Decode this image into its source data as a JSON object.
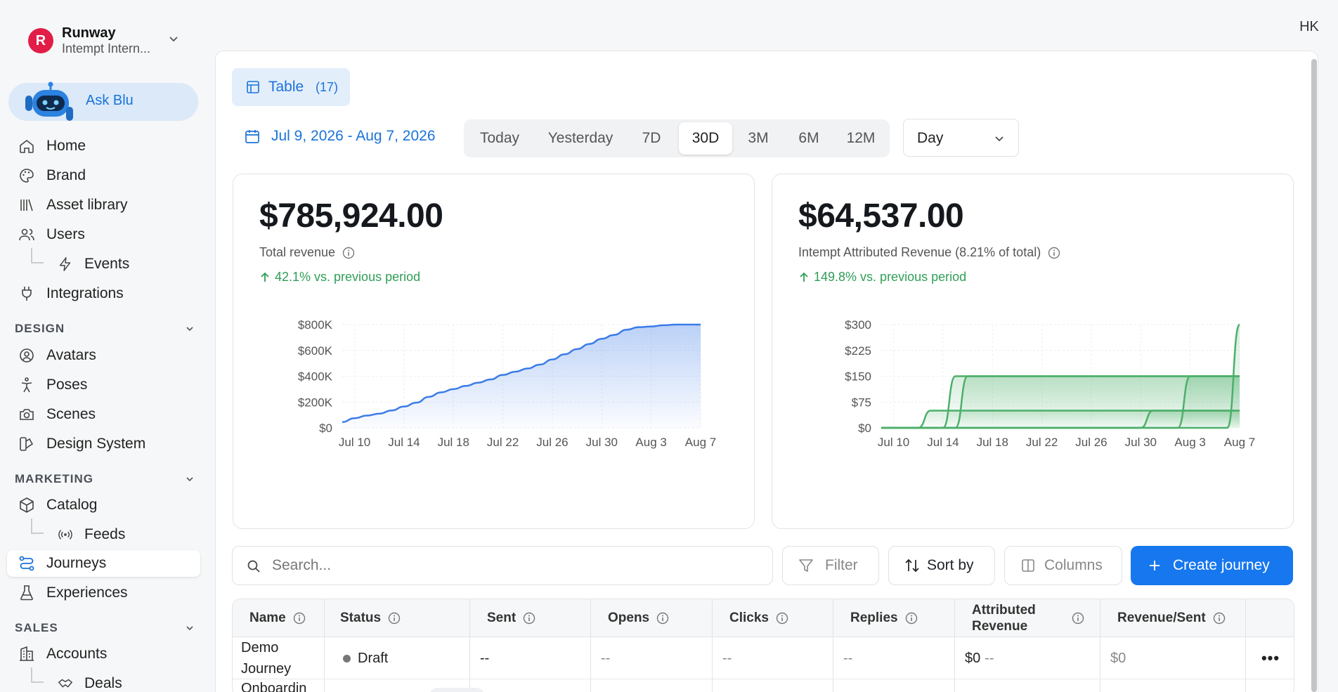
{
  "org": {
    "initial": "R",
    "name": "Runway",
    "subtitle": "Intempt Intern..."
  },
  "user_initials": "HK",
  "ask_blu": "Ask Blu",
  "nav": {
    "home": "Home",
    "brand": "Brand",
    "asset_library": "Asset library",
    "users": "Users",
    "events": "Events",
    "integrations": "Integrations",
    "design_section": "DESIGN",
    "avatars": "Avatars",
    "poses": "Poses",
    "scenes": "Scenes",
    "design_system": "Design System",
    "marketing_section": "MARKETING",
    "catalog": "Catalog",
    "feeds": "Feeds",
    "journeys": "Journeys",
    "experiences": "Experiences",
    "sales_section": "SALES",
    "accounts": "Accounts",
    "deals": "Deals"
  },
  "view_tab": {
    "label": "Table",
    "count": "(17)"
  },
  "date_range": "Jul 9, 2026 - Aug 7, 2026",
  "periods": [
    "Today",
    "Yesterday",
    "7D",
    "30D",
    "3M",
    "6M",
    "12M"
  ],
  "active_period": "30D",
  "granularity": "Day",
  "cards": {
    "total": {
      "value": "$785,924.00",
      "label": "Total revenue",
      "delta": "42.1% vs. previous period"
    },
    "attributed": {
      "value": "$64,537.00",
      "label": "Intempt Attributed Revenue (8.21% of total)",
      "delta": "149.8% vs. previous period"
    }
  },
  "chart_data": [
    {
      "type": "area",
      "title": "",
      "x": [
        "Jul 9",
        "Jul 10",
        "Jul 11",
        "Jul 12",
        "Jul 13",
        "Jul 14",
        "Jul 15",
        "Jul 16",
        "Jul 17",
        "Jul 18",
        "Jul 19",
        "Jul 20",
        "Jul 21",
        "Jul 22",
        "Jul 23",
        "Jul 24",
        "Jul 25",
        "Jul 26",
        "Jul 27",
        "Jul 28",
        "Jul 29",
        "Jul 30",
        "Jul 31",
        "Aug 1",
        "Aug 2",
        "Aug 3",
        "Aug 4",
        "Aug 5",
        "Aug 6",
        "Aug 7"
      ],
      "xticks": [
        "Jul 10",
        "Jul 14",
        "Jul 18",
        "Jul 22",
        "Jul 26",
        "Jul 30",
        "Aug 3",
        "Aug 7"
      ],
      "yticks": [
        "$0",
        "$200K",
        "$400K",
        "$600K",
        "$800K"
      ],
      "ylim": [
        0,
        800000
      ],
      "series": [
        {
          "values": [
            45000,
            75000,
            95000,
            110000,
            135000,
            165000,
            195000,
            240000,
            275000,
            300000,
            325000,
            350000,
            375000,
            410000,
            435000,
            460000,
            490000,
            530000,
            570000,
            610000,
            650000,
            690000,
            720000,
            760000,
            780000,
            785000,
            795000,
            800000,
            800000,
            800000
          ]
        }
      ],
      "grid": true,
      "color": "#3b7be8"
    },
    {
      "type": "area",
      "title": "",
      "x": [
        "Jul 9",
        "Jul 10",
        "Jul 11",
        "Jul 12",
        "Jul 13",
        "Jul 14",
        "Jul 15",
        "Jul 16",
        "Jul 17",
        "Jul 18",
        "Jul 19",
        "Jul 20",
        "Jul 21",
        "Jul 22",
        "Jul 23",
        "Jul 24",
        "Jul 25",
        "Jul 26",
        "Jul 27",
        "Jul 28",
        "Jul 29",
        "Jul 30",
        "Jul 31",
        "Aug 1",
        "Aug 2",
        "Aug 3",
        "Aug 4",
        "Aug 5",
        "Aug 6",
        "Aug 7"
      ],
      "xticks": [
        "Jul 10",
        "Jul 14",
        "Jul 18",
        "Jul 22",
        "Jul 26",
        "Jul 30",
        "Aug 3",
        "Aug 7"
      ],
      "yticks": [
        "$0",
        "$75",
        "$150",
        "$225",
        "$300"
      ],
      "ylim": [
        0,
        300
      ],
      "series": [
        {
          "values": [
            0,
            0,
            0,
            0,
            50,
            50,
            50,
            50,
            50,
            50,
            50,
            50,
            50,
            50,
            50,
            50,
            50,
            50,
            50,
            50,
            50,
            50,
            50,
            50,
            50,
            50,
            50,
            50,
            50,
            50
          ]
        },
        {
          "values": [
            0,
            0,
            0,
            0,
            0,
            0,
            150,
            150,
            150,
            150,
            150,
            150,
            150,
            150,
            150,
            150,
            150,
            150,
            150,
            150,
            150,
            150,
            150,
            150,
            150,
            150,
            150,
            150,
            150,
            150
          ]
        },
        {
          "values": [
            0,
            0,
            0,
            0,
            0,
            0,
            0,
            150,
            150,
            150,
            150,
            150,
            150,
            150,
            150,
            150,
            150,
            150,
            150,
            150,
            150,
            150,
            150,
            150,
            150,
            150,
            150,
            150,
            150,
            150
          ]
        },
        {
          "values": [
            0,
            0,
            0,
            0,
            0,
            0,
            0,
            0,
            0,
            0,
            0,
            0,
            0,
            0,
            0,
            0,
            0,
            0,
            0,
            0,
            0,
            0,
            50,
            50,
            50,
            50,
            50,
            50,
            50,
            50
          ]
        },
        {
          "values": [
            0,
            0,
            0,
            0,
            0,
            0,
            0,
            0,
            0,
            0,
            0,
            0,
            0,
            0,
            0,
            0,
            0,
            0,
            0,
            0,
            0,
            0,
            0,
            0,
            0,
            150,
            150,
            150,
            150,
            150
          ]
        },
        {
          "values": [
            0,
            0,
            0,
            0,
            0,
            0,
            0,
            0,
            0,
            0,
            0,
            0,
            0,
            0,
            0,
            0,
            0,
            0,
            0,
            0,
            0,
            0,
            0,
            0,
            0,
            0,
            0,
            0,
            0,
            300
          ]
        }
      ],
      "grid": true,
      "color": "#4caf6a"
    }
  ],
  "toolbar": {
    "search_placeholder": "Search...",
    "filter": "Filter",
    "sort": "Sort by",
    "columns": "Columns",
    "create": "Create journey"
  },
  "table": {
    "headers": [
      "Name",
      "Status",
      "Sent",
      "Opens",
      "Clicks",
      "Replies",
      "Attributed Revenue",
      "Revenue/Sent"
    ],
    "rows": [
      {
        "name": "Demo Journey",
        "status": "Draft",
        "sent": "--",
        "opens": "--",
        "clicks": "--",
        "replies": "--",
        "attributed_value": "$0",
        "attributed_extra": "--",
        "revenue_sent": "$0",
        "actions": "•••"
      },
      {
        "name": "Onboardin"
      }
    ]
  }
}
